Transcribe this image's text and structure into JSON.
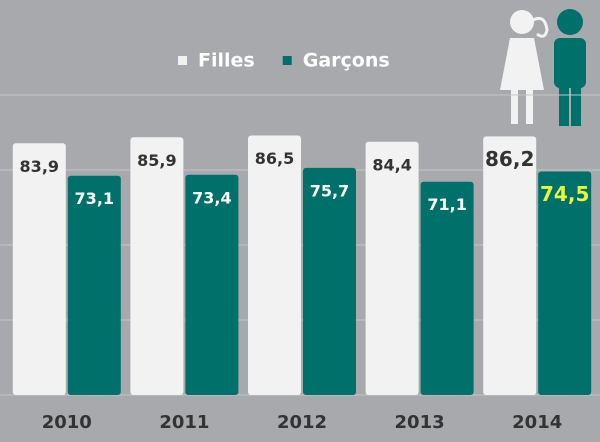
{
  "chart_data": {
    "type": "bar",
    "categories": [
      "2010",
      "2011",
      "2012",
      "2013",
      "2014"
    ],
    "series": [
      {
        "name": "Filles",
        "color": "#f2f2f2",
        "label_color": "#333333",
        "values": [
          83.9,
          85.9,
          86.5,
          84.4,
          86.2
        ],
        "value_labels": [
          "83,9",
          "85,9",
          "86,5",
          "84,4",
          "86,2"
        ]
      },
      {
        "name": "Garçons",
        "color": "#00706b",
        "label_color": "#ffffff",
        "values": [
          73.1,
          73.4,
          75.7,
          71.1,
          74.5
        ],
        "value_labels": [
          "73,1",
          "73,4",
          "75,7",
          "71,1",
          "74,5"
        ],
        "highlight_color": "#e8f53a"
      }
    ],
    "highlight": "2014",
    "ylim": [
      0,
      100
    ],
    "yticks": [
      0,
      25,
      50,
      75,
      100
    ],
    "grid": true
  }
}
